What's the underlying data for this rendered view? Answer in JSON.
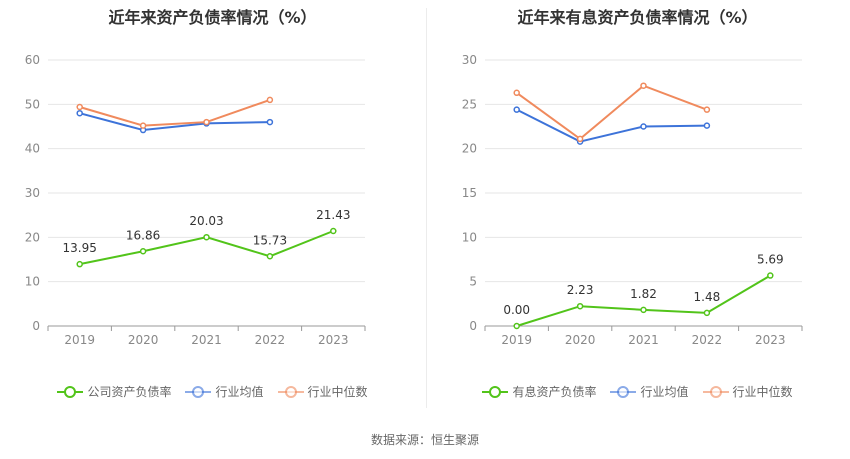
{
  "source": "数据来源：恒生聚源",
  "chart_data": [
    {
      "type": "line",
      "title": "近年来资产负债率情况（%）",
      "categories": [
        "2019",
        "2020",
        "2021",
        "2022",
        "2023"
      ],
      "ylim": [
        0,
        60
      ],
      "yticks": [
        0,
        10,
        20,
        30,
        40,
        50,
        60
      ],
      "grid": true,
      "legend": "bottom",
      "series": [
        {
          "name": "公司资产负债率",
          "color": "#52c41a",
          "values": [
            13.95,
            16.86,
            20.03,
            15.73,
            21.43
          ],
          "labels": [
            "13.95",
            "16.86",
            "20.03",
            "15.73",
            "21.43"
          ]
        },
        {
          "name": "行业均值",
          "color": "#3d73d9",
          "values": [
            48.0,
            44.2,
            45.7,
            46.0,
            null
          ]
        },
        {
          "name": "行业中位数",
          "color": "#f08a5d",
          "values": [
            49.4,
            45.2,
            46.0,
            51.0,
            null
          ]
        }
      ]
    },
    {
      "type": "line",
      "title": "近年来有息资产负债率情况（%）",
      "categories": [
        "2019",
        "2020",
        "2021",
        "2022",
        "2023"
      ],
      "ylim": [
        0,
        30
      ],
      "yticks": [
        0,
        5,
        10,
        15,
        20,
        25,
        30
      ],
      "grid": true,
      "legend": "bottom",
      "series": [
        {
          "name": "有息资产负债率",
          "color": "#52c41a",
          "values": [
            0.0,
            2.23,
            1.82,
            1.48,
            5.69
          ],
          "labels": [
            "0.00",
            "2.23",
            "1.82",
            "1.48",
            "5.69"
          ]
        },
        {
          "name": "行业均值",
          "color": "#3d73d9",
          "values": [
            24.4,
            20.8,
            22.5,
            22.6,
            null
          ]
        },
        {
          "name": "行业中位数",
          "color": "#f08a5d",
          "values": [
            26.3,
            21.1,
            27.1,
            24.4,
            null
          ]
        }
      ]
    }
  ]
}
